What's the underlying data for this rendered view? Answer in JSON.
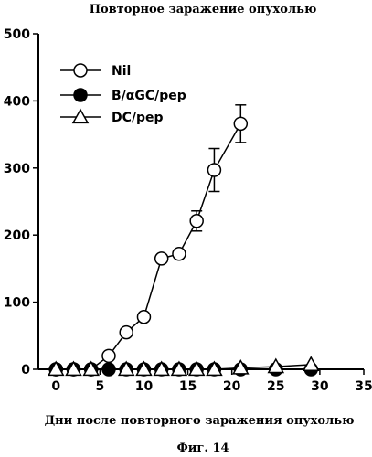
{
  "chart_data": {
    "type": "line",
    "title": "Повторное заражение опухолью",
    "xlabel": "Дни после повторного заражения опухолью",
    "ylabel": "",
    "caption": "Фиг. 14",
    "xlim": [
      -2,
      35
    ],
    "ylim": [
      0,
      500
    ],
    "xticks": [
      0,
      5,
      10,
      15,
      20,
      25,
      30,
      35
    ],
    "yticks": [
      0,
      100,
      200,
      300,
      400,
      500
    ],
    "legend_position": "top-left",
    "series": [
      {
        "name": "Nil",
        "marker": "circle-open",
        "x": [
          0,
          2,
          4,
          6,
          8,
          10,
          12,
          14,
          16,
          18,
          21
        ],
        "y": [
          0,
          0,
          0,
          20,
          55,
          78,
          165,
          172,
          221,
          297,
          366
        ],
        "err": [
          0,
          0,
          0,
          0,
          0,
          0,
          5,
          6,
          15,
          32,
          28
        ]
      },
      {
        "name": "B/αGC/pep",
        "marker": "circle-filled",
        "x": [
          0,
          2,
          4,
          6,
          8,
          10,
          12,
          14,
          16,
          18,
          21,
          25,
          29
        ],
        "y": [
          0,
          0,
          0,
          0,
          0,
          0,
          0,
          0,
          0,
          0,
          0,
          0,
          0
        ],
        "err": []
      },
      {
        "name": "DC/pep",
        "marker": "triangle-open",
        "x": [
          0,
          2,
          4,
          8,
          10,
          12,
          14,
          16,
          18,
          21,
          25,
          29
        ],
        "y": [
          0,
          0,
          0,
          0,
          0,
          0,
          0,
          0,
          0,
          2,
          4,
          7
        ],
        "err": []
      }
    ]
  }
}
